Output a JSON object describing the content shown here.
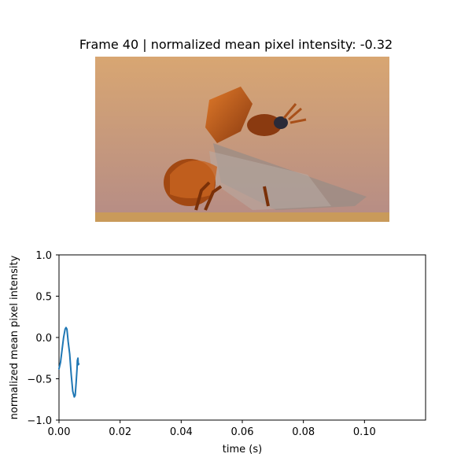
{
  "figure": {
    "title": "Frame 40 | normalized mean pixel intensity: -0.32"
  },
  "photo": {
    "subject": "beetle-taking-flight",
    "colors": {
      "background_top": "#d8a672",
      "background_bottom": "#b58c86",
      "ground": "#c99a5a",
      "body": "#a24812",
      "shell_highlight": "#e07a2a",
      "wing": "#9a8c86"
    }
  },
  "chart_data": {
    "type": "line",
    "title": "",
    "xlabel": "time (s)",
    "ylabel": "normalized mean pixel intensity",
    "xlim": [
      0,
      0.12
    ],
    "ylim": [
      -1.0,
      1.0
    ],
    "xticks": [
      0.0,
      0.02,
      0.04,
      0.06,
      0.08,
      0.1
    ],
    "xtick_labels": [
      "0.00",
      "0.02",
      "0.04",
      "0.06",
      "0.08",
      "0.10"
    ],
    "yticks": [
      -1.0,
      -0.5,
      0.0,
      0.5,
      1.0
    ],
    "ytick_labels": [
      "−1.0",
      "−0.5",
      "0.0",
      "0.5",
      "1.0"
    ],
    "grid": false,
    "series": [
      {
        "color": "#1f77b4",
        "x": [
          0.0,
          0.0005,
          0.001,
          0.0015,
          0.002,
          0.0023,
          0.0026,
          0.003,
          0.0035,
          0.004,
          0.0045,
          0.005,
          0.0053,
          0.0056,
          0.0059,
          0.006,
          0.0062,
          0.0063,
          0.0065
        ],
        "y": [
          -0.38,
          -0.3,
          -0.15,
          0.0,
          0.1,
          0.12,
          0.1,
          -0.05,
          -0.2,
          -0.45,
          -0.65,
          -0.72,
          -0.7,
          -0.55,
          -0.38,
          -0.28,
          -0.25,
          -0.33,
          -0.32
        ]
      }
    ]
  }
}
